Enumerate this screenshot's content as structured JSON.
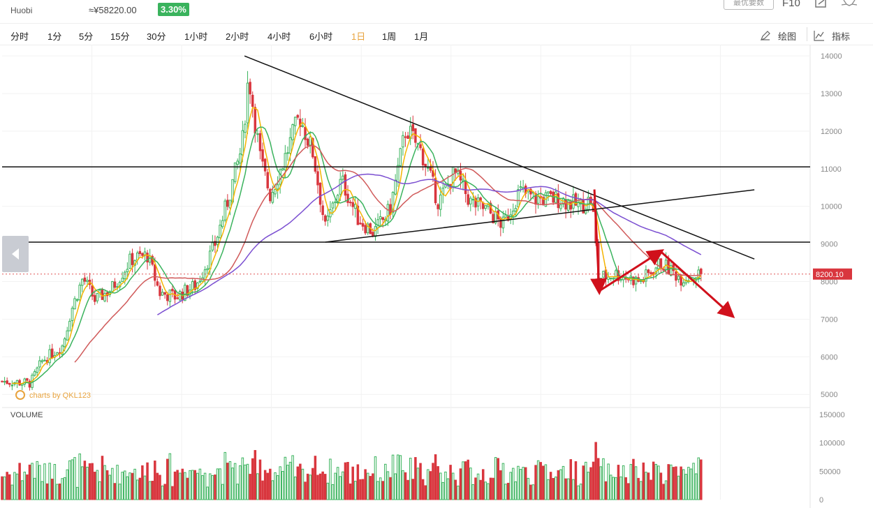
{
  "header": {
    "exchange": "Huobi",
    "cny_price": "≈¥58220.00",
    "change_pct": "3.30%",
    "change_color": "#3ab35d",
    "top_button": "最优要数",
    "f10": "F10"
  },
  "timeframes": [
    "分时",
    "1分",
    "5分",
    "15分",
    "30分",
    "1小时",
    "2小时",
    "4小时",
    "6小时",
    "1日",
    "1周",
    "1月"
  ],
  "active_timeframe": "1日",
  "tools": {
    "draw": "绘图",
    "indicators": "指标"
  },
  "icons": {
    "draw": "pencil-icon",
    "indicators": "line-chart-icon",
    "prev": "arrow-left-icon",
    "share": "share-icon",
    "star": "star-icon"
  },
  "watermark": "charts by QKL123",
  "volume_label": "VOLUME",
  "price_label": "8200.10",
  "colors": {
    "up": "#3ab35d",
    "down": "#d9363e",
    "ma5": "#f4b400",
    "ma10": "#3ab35d",
    "ma30": "#d05a5a",
    "ma60": "#7b4fd1",
    "annotation": "#d0101b"
  },
  "chart_data": {
    "type": "candlestick",
    "y_ticks": [
      5000,
      6000,
      7000,
      8000,
      9000,
      10000,
      11000,
      12000,
      13000,
      14000
    ],
    "ylim": [
      4800,
      14300
    ],
    "volume_ticks": [
      0,
      50000,
      100000,
      150000
    ],
    "volume_lim": [
      0,
      150000
    ],
    "last_price": 8200.1,
    "horizontal_lines": [
      11050,
      9050
    ],
    "trendlines": [
      {
        "from": [
          0.3,
          14000
        ],
        "to": [
          0.931,
          8600
        ]
      },
      {
        "from": [
          0.4,
          9050
        ],
        "to": [
          0.931,
          10440
        ]
      }
    ],
    "arrows": [
      {
        "from": [
          0.733,
          10450
        ],
        "to": [
          0.739,
          7750
        ]
      },
      {
        "from": [
          0.739,
          7750
        ],
        "to": [
          0.815,
          8800
        ]
      },
      {
        "from": [
          0.815,
          8800
        ],
        "to": [
          0.903,
          7100
        ]
      }
    ],
    "ma60_range": [
      0.19,
      0.867
    ],
    "keypoints": [
      [
        0.0,
        5350
      ],
      [
        0.035,
        5300
      ],
      [
        0.05,
        5900
      ],
      [
        0.075,
        6300
      ],
      [
        0.085,
        7200
      ],
      [
        0.1,
        8100
      ],
      [
        0.115,
        7500
      ],
      [
        0.135,
        7800
      ],
      [
        0.16,
        8600
      ],
      [
        0.18,
        8700
      ],
      [
        0.195,
        7700
      ],
      [
        0.215,
        7600
      ],
      [
        0.24,
        7900
      ],
      [
        0.262,
        8900
      ],
      [
        0.28,
        10200
      ],
      [
        0.297,
        11600
      ],
      [
        0.305,
        13500
      ],
      [
        0.32,
        11200
      ],
      [
        0.332,
        10300
      ],
      [
        0.35,
        11300
      ],
      [
        0.368,
        12400
      ],
      [
        0.385,
        11400
      ],
      [
        0.4,
        9400
      ],
      [
        0.42,
        10700
      ],
      [
        0.44,
        9700
      ],
      [
        0.46,
        9300
      ],
      [
        0.48,
        9900
      ],
      [
        0.5,
        12100
      ],
      [
        0.52,
        11400
      ],
      [
        0.54,
        10100
      ],
      [
        0.56,
        10900
      ],
      [
        0.58,
        10100
      ],
      [
        0.6,
        9900
      ],
      [
        0.62,
        9500
      ],
      [
        0.64,
        10400
      ],
      [
        0.66,
        10200
      ],
      [
        0.69,
        10200
      ],
      [
        0.715,
        10000
      ],
      [
        0.73,
        10200
      ],
      [
        0.738,
        8100
      ],
      [
        0.76,
        8200
      ],
      [
        0.79,
        8000
      ],
      [
        0.815,
        8500
      ],
      [
        0.84,
        8100
      ],
      [
        0.865,
        8200
      ]
    ]
  }
}
